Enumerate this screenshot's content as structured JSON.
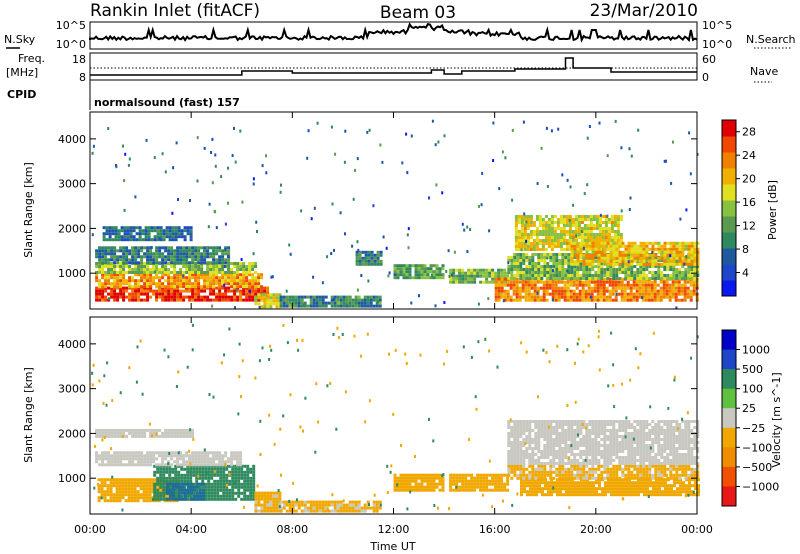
{
  "header": {
    "station": "Rankin Inlet (fitACF)",
    "beam": "Beam 03",
    "date": "23/Mar/2010"
  },
  "strip_panels": {
    "nsky_label": "N.Sky",
    "nsky_ticks": [
      "10^5",
      "10^0"
    ],
    "nsearch_label": "N.Search",
    "nsearch_ticks": [
      "10^5",
      "10^0"
    ],
    "freq_label": "Freq.",
    "freq_unit": "[MHz]",
    "freq_ticks": [
      "18",
      "8"
    ],
    "nave_label": "Nave",
    "nave_ticks": [
      "60",
      "0"
    ],
    "cpid_label": "CPID",
    "cpid_value": "normalsound (fast) 157"
  },
  "colors": {
    "power_scale": [
      "#0a18f0",
      "#1e46c8",
      "#1f5aa0",
      "#2e8a5e",
      "#5a9a50",
      "#88c040",
      "#e0e020",
      "#f0b000",
      "#f08000",
      "#f04800",
      "#e00000"
    ],
    "velocity_scale": [
      "#e81818",
      "#f05000",
      "#f08c00",
      "#f0a800",
      "#c8c8c0",
      "#c8c8c0",
      "#60c040",
      "#2e8a5e",
      "#1e6e9a",
      "#1e46c8",
      "#0000c8"
    ]
  },
  "chart_data": [
    {
      "type": "heatmap",
      "title": "",
      "xlabel": "Time UT",
      "ylabel": "Slant Range [km]",
      "x_ticks": [
        "00:00",
        "04:00",
        "08:00",
        "12:00",
        "16:00",
        "20:00",
        "00:00"
      ],
      "x_range_hours": [
        0,
        24
      ],
      "y_ticks": [
        "1000",
        "2000",
        "3000",
        "4000"
      ],
      "y_tick_values": [
        1000,
        2000,
        3000,
        4000
      ],
      "ylim": [
        200,
        4600
      ],
      "colorbar": {
        "label": "Power [dB]",
        "ticks": [
          "4",
          "8",
          "12",
          "16",
          "20",
          "24",
          "28"
        ],
        "range": [
          0,
          30
        ]
      },
      "regions": [
        {
          "t": [
            0.2,
            7.0
          ],
          "r": [
            400,
            700
          ],
          "value": 27
        },
        {
          "t": [
            0.2,
            6.8
          ],
          "r": [
            700,
            1000
          ],
          "value": 22
        },
        {
          "t": [
            0.2,
            6.5
          ],
          "r": [
            1000,
            1250
          ],
          "value": 15
        },
        {
          "t": [
            0.2,
            5.5
          ],
          "r": [
            1250,
            1600
          ],
          "value": 9
        },
        {
          "t": [
            0.5,
            4.0
          ],
          "r": [
            1750,
            2050
          ],
          "value": 7
        },
        {
          "t": [
            6.5,
            7.5
          ],
          "r": [
            250,
            550
          ],
          "value": 18
        },
        {
          "t": [
            7.5,
            11.5
          ],
          "r": [
            250,
            500
          ],
          "value": 10
        },
        {
          "t": [
            10.5,
            11.5
          ],
          "r": [
            1200,
            1500
          ],
          "value": 9
        },
        {
          "t": [
            12.0,
            14.0
          ],
          "r": [
            900,
            1200
          ],
          "value": 12
        },
        {
          "t": [
            14.2,
            16.5
          ],
          "r": [
            800,
            1100
          ],
          "value": 14
        },
        {
          "t": [
            16.0,
            24.0
          ],
          "r": [
            400,
            900
          ],
          "value": 23
        },
        {
          "t": [
            16.5,
            24.0
          ],
          "r": [
            900,
            1450
          ],
          "value": 14
        },
        {
          "t": [
            16.8,
            21.0
          ],
          "r": [
            1500,
            2300
          ],
          "value": 18
        },
        {
          "t": [
            19.0,
            24.0
          ],
          "r": [
            1200,
            1700
          ],
          "value": 20
        }
      ]
    },
    {
      "type": "heatmap",
      "title": "",
      "xlabel": "Time UT",
      "ylabel": "Slant Range [km]",
      "x_ticks": [
        "00:00",
        "04:00",
        "08:00",
        "12:00",
        "16:00",
        "20:00",
        "00:00"
      ],
      "x_range_hours": [
        0,
        24
      ],
      "y_ticks": [
        "1000",
        "2000",
        "3000",
        "4000"
      ],
      "y_tick_values": [
        1000,
        2000,
        3000,
        4000
      ],
      "ylim": [
        200,
        4600
      ],
      "colorbar": {
        "label": "Velocity [m s^-1]",
        "ticks": [
          "1000",
          "500",
          "100",
          "25",
          "−25",
          "−100",
          "−500",
          "−1000"
        ],
        "categories": [
          "> 1000",
          "500 to 1000",
          "100 to 500",
          "25 to 100",
          "-25 to 25",
          "-100 to -25",
          "-500 to -100",
          "-1000 to -500",
          "< -1000"
        ]
      },
      "regions": [
        {
          "t": [
            0.3,
            3.5
          ],
          "r": [
            500,
            1000
          ],
          "value": -300
        },
        {
          "t": [
            2.5,
            6.5
          ],
          "r": [
            500,
            1300
          ],
          "value": 300
        },
        {
          "t": [
            3.0,
            4.5
          ],
          "r": [
            500,
            900
          ],
          "value": 700
        },
        {
          "t": [
            0.2,
            6.0
          ],
          "r": [
            1300,
            1600
          ],
          "value": 0
        },
        {
          "t": [
            0.2,
            4.0
          ],
          "r": [
            1900,
            2100
          ],
          "value": 0
        },
        {
          "t": [
            6.5,
            7.5
          ],
          "r": [
            250,
            700
          ],
          "value": -150
        },
        {
          "t": [
            7.5,
            11.5
          ],
          "r": [
            250,
            500
          ],
          "value": -150
        },
        {
          "t": [
            12.0,
            14.0
          ],
          "r": [
            700,
            1100
          ],
          "value": -200
        },
        {
          "t": [
            14.2,
            16.5
          ],
          "r": [
            700,
            1100
          ],
          "value": -200
        },
        {
          "t": [
            17.0,
            24.0
          ],
          "r": [
            600,
            1000
          ],
          "value": -200
        },
        {
          "t": [
            16.5,
            24.0
          ],
          "r": [
            1000,
            1300
          ],
          "value": -150
        },
        {
          "t": [
            16.5,
            24.0
          ],
          "r": [
            1300,
            2300
          ],
          "value": 0
        }
      ]
    }
  ]
}
